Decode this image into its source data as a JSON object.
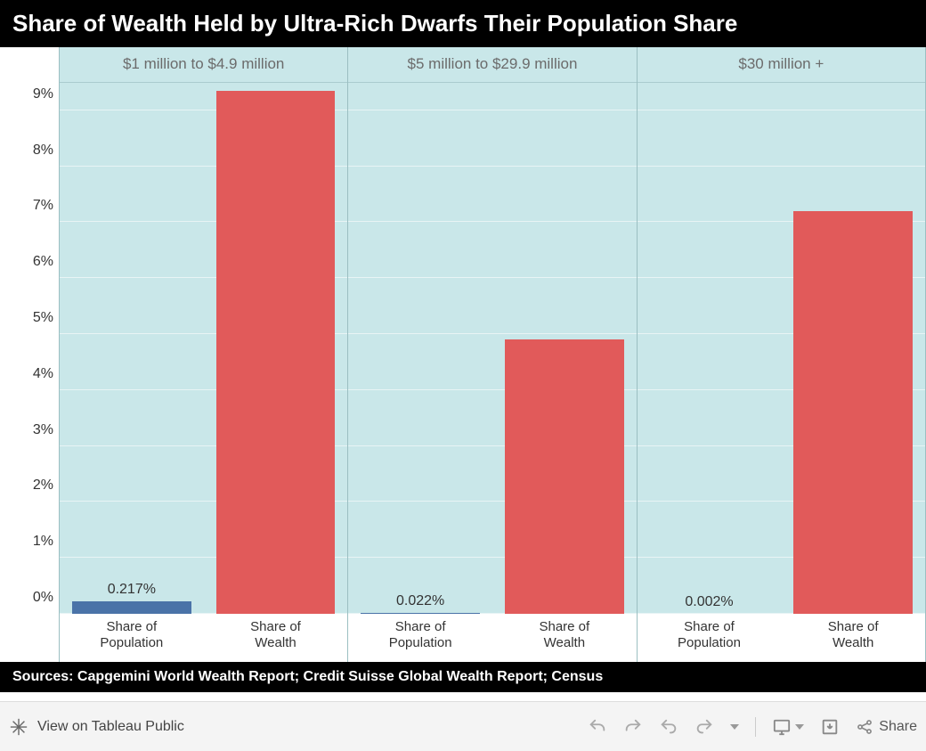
{
  "title": "Share of Wealth Held by Ultra-Rich Dwarfs Their Population Share",
  "sources": "Sources: Capgemini World Wealth Report; Credit Suisse Global Wealth Report; Census",
  "chart": {
    "type": "bar",
    "background_color": "#c9e7e9",
    "grid_color": "#e8f4f5",
    "panel_divider_color": "#9bbfc2",
    "ylim": [
      0,
      9.5
    ],
    "ytick_step": 1,
    "ytick_format": "%",
    "yticks": [
      "0%",
      "1%",
      "2%",
      "3%",
      "4%",
      "5%",
      "6%",
      "7%",
      "8%",
      "9%"
    ],
    "bar_width": 0.94,
    "category_labels": [
      "Share of Population",
      "Share of Wealth"
    ],
    "series_colors": {
      "population": "#4a73a8",
      "wealth": "#e15a5a"
    },
    "panels": [
      {
        "header": "$1 million to $4.9 million",
        "bars": [
          {
            "key": "population",
            "value": 0.217,
            "value_label": "0.217%",
            "color": "#4a73a8"
          },
          {
            "key": "wealth",
            "value": 9.35,
            "value_label": "",
            "color": "#e15a5a"
          }
        ]
      },
      {
        "header": "$5 million to $29.9 million",
        "bars": [
          {
            "key": "population",
            "value": 0.022,
            "value_label": "0.022%",
            "color": "#4a73a8"
          },
          {
            "key": "wealth",
            "value": 4.9,
            "value_label": "",
            "color": "#e15a5a"
          }
        ]
      },
      {
        "header": "$30 million +",
        "bars": [
          {
            "key": "population",
            "value": 0.002,
            "value_label": "0.002%",
            "color": "#4a73a8"
          },
          {
            "key": "wealth",
            "value": 7.2,
            "value_label": "",
            "color": "#e15a5a"
          }
        ]
      }
    ],
    "title_fontsize": 26,
    "axis_label_fontsize": 16,
    "panel_header_fontsize": 17,
    "panel_header_color": "#6b6b6b"
  },
  "toolbar": {
    "view_label": "View on Tableau Public",
    "share_label": "Share"
  }
}
